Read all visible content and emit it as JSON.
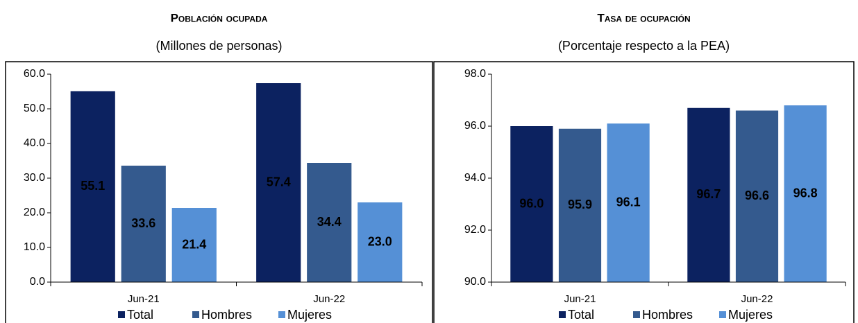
{
  "chart_data": [
    {
      "type": "bar",
      "title": "Población ocupada",
      "subtitle": "(Millones de personas)",
      "categories": [
        "Jun-21",
        "Jun-22"
      ],
      "series": [
        {
          "name": "Total",
          "color": "#0c2260",
          "values": [
            55.1,
            57.4
          ]
        },
        {
          "name": "Hombres",
          "color": "#345a8e",
          "values": [
            33.6,
            34.4
          ]
        },
        {
          "name": "Mujeres",
          "color": "#5590d6",
          "values": [
            21.4,
            23.0
          ],
          "value_labels": [
            "21.4",
            "23.0"
          ]
        }
      ],
      "ylim": [
        0,
        60
      ],
      "yticks": [
        {
          "value": 0,
          "label": "0.0"
        },
        {
          "value": 10,
          "label": "10.0"
        },
        {
          "value": 20,
          "label": "20.0"
        },
        {
          "value": 30,
          "label": "30.0"
        },
        {
          "value": 40,
          "label": "40.0"
        },
        {
          "value": 50,
          "label": "50.0"
        },
        {
          "value": 60,
          "label": "60.0"
        }
      ],
      "grid": false
    },
    {
      "type": "bar",
      "title": "Tasa de ocupación",
      "subtitle": "(Porcentaje respecto a la PEA)",
      "categories": [
        "Jun-21",
        "Jun-22"
      ],
      "series": [
        {
          "name": "Total",
          "color": "#0c2260",
          "values": [
            96.0,
            96.7
          ],
          "value_labels": [
            "96.0",
            "96.7"
          ]
        },
        {
          "name": "Hombres",
          "color": "#345a8e",
          "values": [
            95.9,
            96.6
          ]
        },
        {
          "name": "Mujeres",
          "color": "#5590d6",
          "values": [
            96.1,
            96.8
          ]
        }
      ],
      "ylim": [
        90,
        98
      ],
      "yticks": [
        {
          "value": 90,
          "label": "90.0"
        },
        {
          "value": 92,
          "label": "92.0"
        },
        {
          "value": 94,
          "label": "94.0"
        },
        {
          "value": 96,
          "label": "96.0"
        },
        {
          "value": 98,
          "label": "98.0"
        }
      ],
      "grid": false
    }
  ]
}
